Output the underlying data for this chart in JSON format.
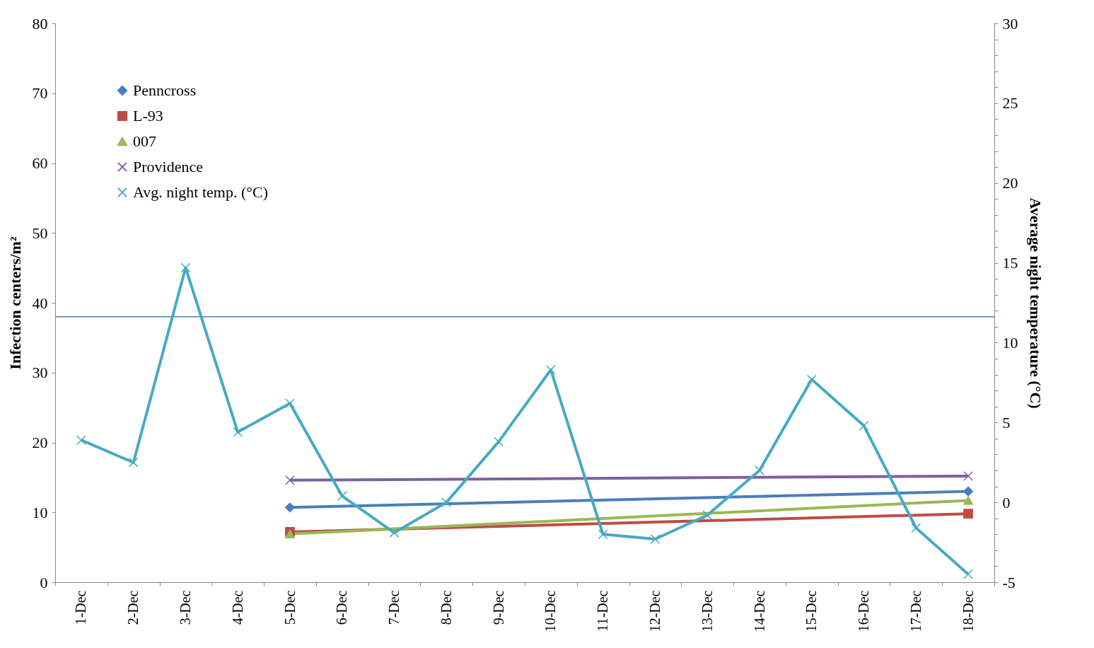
{
  "chart_data": {
    "type": "line",
    "categories": [
      "1-Dec",
      "2-Dec",
      "3-Dec",
      "4-Dec",
      "5-Dec",
      "6-Dec",
      "7-Dec",
      "8-Dec",
      "9-Dec",
      "10-Dec",
      "11-Dec",
      "12-Dec",
      "13-Dec",
      "14-Dec",
      "15-Dec",
      "16-Dec",
      "17-Dec",
      "18-Dec"
    ],
    "series": [
      {
        "name": "Penncross",
        "color": "#4a7ebb",
        "marker": "diamond",
        "values": [
          null,
          null,
          null,
          null,
          10.7,
          null,
          null,
          null,
          null,
          null,
          null,
          null,
          null,
          null,
          null,
          null,
          null,
          13.0
        ]
      },
      {
        "name": "L-93",
        "color": "#be4b48",
        "marker": "square",
        "values": [
          null,
          null,
          null,
          null,
          7.2,
          null,
          null,
          null,
          null,
          null,
          null,
          null,
          null,
          null,
          null,
          null,
          null,
          9.8
        ]
      },
      {
        "name": "007",
        "color": "#98b954",
        "marker": "triangle",
        "values": [
          null,
          null,
          null,
          null,
          6.9,
          null,
          null,
          null,
          null,
          null,
          null,
          null,
          null,
          null,
          null,
          null,
          null,
          11.7
        ]
      },
      {
        "name": "Providence",
        "color": "#7d60a0",
        "marker": "cross",
        "values": [
          null,
          null,
          null,
          null,
          14.6,
          null,
          null,
          null,
          null,
          null,
          null,
          null,
          null,
          null,
          null,
          null,
          null,
          15.2
        ]
      },
      {
        "name": "Avg. night temp. (°C)",
        "color": "#46aac5",
        "marker": "cross",
        "axis": "y2",
        "values": [
          3.9,
          2.5,
          14.7,
          4.4,
          6.2,
          0.4,
          -1.9,
          0.0,
          3.8,
          8.3,
          -2.0,
          -2.3,
          -0.8,
          2.0,
          7.7,
          4.8,
          -1.6,
          -4.5
        ]
      }
    ],
    "ylabel": "Infection centers/m²",
    "y2label": "Average night temperature (°C)",
    "ylim": [
      0,
      80
    ],
    "yticks": [
      0,
      10,
      20,
      30,
      40,
      50,
      60,
      70,
      80
    ],
    "y2lim": [
      -5,
      30
    ],
    "y2ticks": [
      -5,
      {
        "value": -4,
        "label": null
      },
      {
        "value": -3,
        "label": null
      },
      {
        "value": -2,
        "label": null
      },
      {
        "value": -1,
        "label": null
      },
      0,
      {
        "value": 1,
        "label": null
      },
      {
        "value": 2,
        "label": null
      },
      {
        "value": 3,
        "label": null
      },
      {
        "value": 4,
        "label": null
      },
      5,
      {
        "value": 6,
        "label": null
      },
      {
        "value": 7,
        "label": null
      },
      {
        "value": 8,
        "label": null
      },
      {
        "value": 9,
        "label": null
      },
      10,
      {
        "value": 11,
        "label": null
      },
      {
        "value": 12,
        "label": null
      },
      {
        "value": 13,
        "label": null
      },
      {
        "value": 14,
        "label": null
      },
      15,
      {
        "value": 16,
        "label": null
      },
      {
        "value": 17,
        "label": null
      },
      {
        "value": 18,
        "label": null
      },
      {
        "value": 19,
        "label": null
      },
      20,
      {
        "value": 21,
        "label": null
      },
      {
        "value": 22,
        "label": null
      },
      {
        "value": 23,
        "label": null
      },
      {
        "value": 24,
        "label": null
      },
      25,
      {
        "value": 26,
        "label": null
      },
      {
        "value": 27,
        "label": null
      },
      {
        "value": 28,
        "label": null
      },
      {
        "value": 29,
        "label": null
      },
      30
    ],
    "ref_lines": [
      {
        "axis": "y",
        "value": 38,
        "color": "#4a7ebb"
      }
    ],
    "grid": false,
    "legend": "top left",
    "line_style": "solid"
  }
}
